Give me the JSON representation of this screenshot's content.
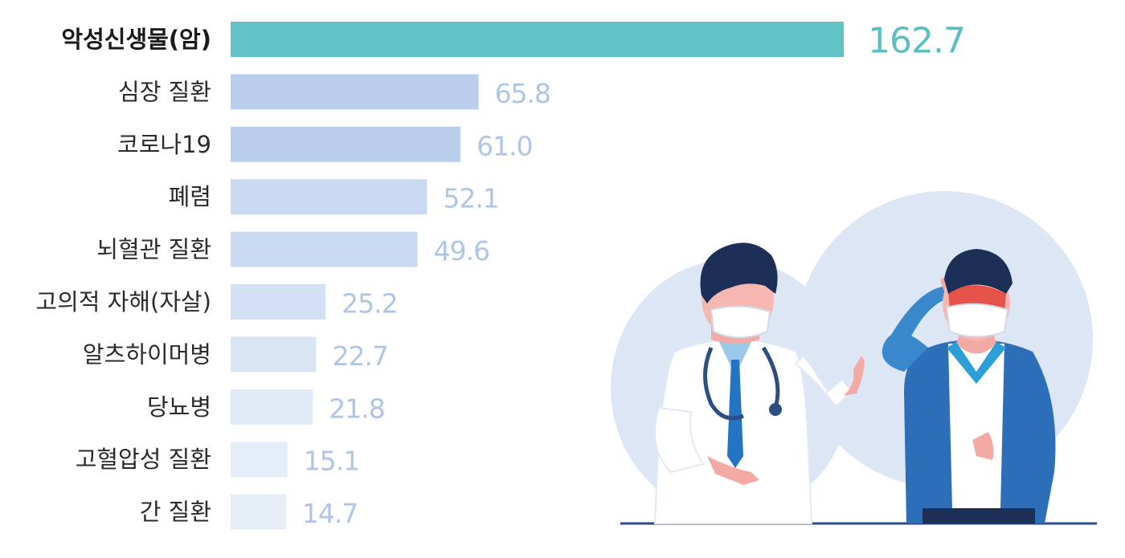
{
  "chart_data": {
    "type": "bar",
    "orientation": "horizontal",
    "categories": [
      "악성신생물(암)",
      "심장 질환",
      "코로나19",
      "폐렴",
      "뇌혈관 질환",
      "고의적 자해(자살)",
      "알츠하이머병",
      "당뇨병",
      "고혈압성 질환",
      "간 질환"
    ],
    "values": [
      162.7,
      65.8,
      61.0,
      52.1,
      49.6,
      25.2,
      22.7,
      21.8,
      15.1,
      14.7
    ],
    "value_labels": [
      "162.7",
      "65.8",
      "61.0",
      "52.1",
      "49.6",
      "25.2",
      "22.7",
      "21.8",
      "15.1",
      "14.7"
    ],
    "highlight_index": 0,
    "title": "",
    "xlabel": "",
    "ylabel": "",
    "xlim": [
      0,
      162.7
    ],
    "grid": false,
    "legend": "none"
  },
  "colors": {
    "highlight_bar": "#61c3c6",
    "highlight_value": "#5bbfc2",
    "value_text": "#aec5e6",
    "bar_shades": [
      "#61c3c6",
      "#b9cfed",
      "#b9cfed",
      "#c8d9f1",
      "#c8d9f1",
      "#d4e1f4",
      "#d9e5f5",
      "#e0eaf7",
      "#e4ecf8",
      "#e6eef8"
    ]
  },
  "illustration": {
    "description_icons": [
      "doctor-icon",
      "patient-icon",
      "stethoscope-icon"
    ]
  }
}
